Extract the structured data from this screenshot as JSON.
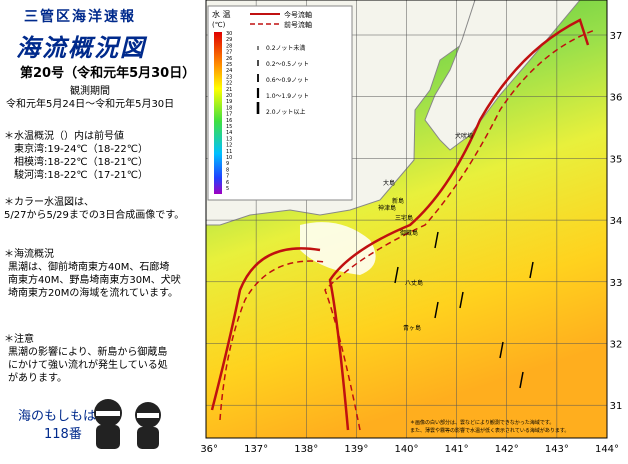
{
  "header": {
    "series": "三管区海洋速報",
    "title": "海流概況図",
    "issue": "第20号（令和元年5月30日）",
    "period_label": "観測期間",
    "period": "令和元年5月24日～令和元年5月30日"
  },
  "notes": {
    "temp_title": "＊水温概況（）内は前号値",
    "temp_lines": [
      "東京湾:19-24℃（18-22℃）",
      "相模湾:18-22℃（18-21℃）",
      "駿河湾:18-22℃（17-21℃）"
    ],
    "image_lines": [
      "＊カラー水温図は、",
      "5/27から5/29までの3日合成画像です。"
    ],
    "current_title": "＊海流概況",
    "current_lines": [
      "黒潮は、御前埼南東方40M、石廊埼",
      "南東方40M、野島埼南東方30M、犬吠",
      "埼南東方20Mの海域を流れています。"
    ],
    "caution_title": "＊注意",
    "caution_lines": [
      "黒潮の影響により、新島から御蔵島",
      "にかけて強い流れが発生している処",
      "があります。"
    ],
    "emergency": [
      "海のもしもは",
      "118番"
    ]
  },
  "legend": {
    "temp_title": "水 温",
    "temp_unit": "(℃)",
    "temp_scale": [
      "30",
      "29",
      "28",
      "27",
      "26",
      "25",
      "24",
      "23",
      "22",
      "21",
      "20",
      "19",
      "18",
      "17",
      "16",
      "15",
      "14",
      "13",
      "12",
      "11",
      "10",
      "9",
      "8",
      "7",
      "6",
      "5"
    ],
    "axis_current": "今号流軸",
    "axis_previous": "前号流軸",
    "speeds": [
      "0.2ノット未満",
      "0.2～0.5ノット",
      "0.6～0.9ノット",
      "1.0～1.9ノット",
      "2.0ノット以上"
    ]
  },
  "map": {
    "lon_labels": [
      "136°",
      "137°",
      "138°",
      "139°",
      "140°",
      "141°",
      "142°",
      "143°",
      "144°"
    ],
    "lat_labels": [
      "37",
      "36",
      "35",
      "34",
      "33",
      "32",
      "31"
    ],
    "places": [
      "大島",
      "新島",
      "神津島",
      "三宅島",
      "御蔵島",
      "八丈島",
      "青ヶ島",
      "犬吠埼"
    ],
    "footnote": [
      "＊画像の白い部分は、雲などにより観測できなかった海域です。",
      "また、薄雲や霧等の影響で水温が低く表示されている海域があります。"
    ]
  }
}
